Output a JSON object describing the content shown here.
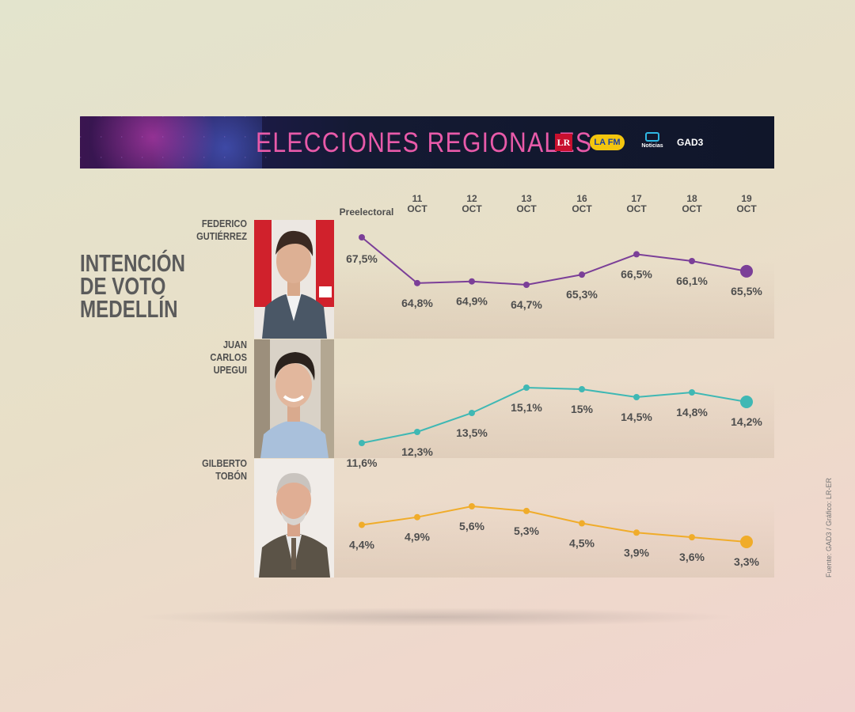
{
  "banner": {
    "title": "ELECCIONES REGIONALES",
    "logos": [
      "LR",
      "LA FM",
      "Noticias",
      "GAD3"
    ]
  },
  "side_title": [
    "INTENCIÓN",
    "DE VOTO",
    "MEDELLÍN"
  ],
  "source": "Fuente: GAD3 / Gráfico: LR-ER",
  "candidates": [
    {
      "name": [
        "FEDERICO",
        "GUTIÉRREZ"
      ]
    },
    {
      "name": [
        "JUAN",
        "CARLOS",
        "UPEGUI"
      ]
    },
    {
      "name": [
        "GILBERTO",
        "TOBÓN"
      ]
    }
  ],
  "chart_data": {
    "type": "line",
    "categories": [
      "Preelectoral",
      "11 OCT",
      "12 OCT",
      "13 OCT",
      "16 OCT",
      "17 OCT",
      "18 OCT",
      "19 OCT"
    ],
    "category_lines": [
      [
        "Preelectoral"
      ],
      [
        "11",
        "OCT"
      ],
      [
        "12",
        "OCT"
      ],
      [
        "13",
        "OCT"
      ],
      [
        "16",
        "OCT"
      ],
      [
        "17",
        "OCT"
      ],
      [
        "18",
        "OCT"
      ],
      [
        "19",
        "OCT"
      ]
    ],
    "series": [
      {
        "name": "FEDERICO GUTIÉRREZ",
        "values": [
          67.5,
          64.8,
          64.9,
          64.7,
          65.3,
          66.5,
          66.1,
          65.5
        ],
        "labels": [
          "67,5%",
          "64,8%",
          "64,9%",
          "64,7%",
          "65,3%",
          "66,5%",
          "66,1%",
          "65,5%"
        ],
        "color": "#7b3f98"
      },
      {
        "name": "JUAN CARLOS UPEGUI",
        "values": [
          11.6,
          12.3,
          13.5,
          15.1,
          15,
          14.5,
          14.8,
          14.2
        ],
        "labels": [
          "11,6%",
          "12,3%",
          "13,5%",
          "15,1%",
          "15%",
          "14,5%",
          "14,8%",
          "14,2%"
        ],
        "color": "#3fb8b4"
      },
      {
        "name": "GILBERTO TOBÓN",
        "values": [
          4.4,
          4.9,
          5.6,
          5.3,
          4.5,
          3.9,
          3.6,
          3.3
        ],
        "labels": [
          "4,4%",
          "4,9%",
          "5,6%",
          "5,3%",
          "4,5%",
          "3,9%",
          "3,6%",
          "3,3%"
        ],
        "color": "#f0ac2a"
      }
    ],
    "label_position": [
      "above",
      "below",
      "below",
      "below",
      "below",
      "below",
      "below",
      "below"
    ]
  }
}
